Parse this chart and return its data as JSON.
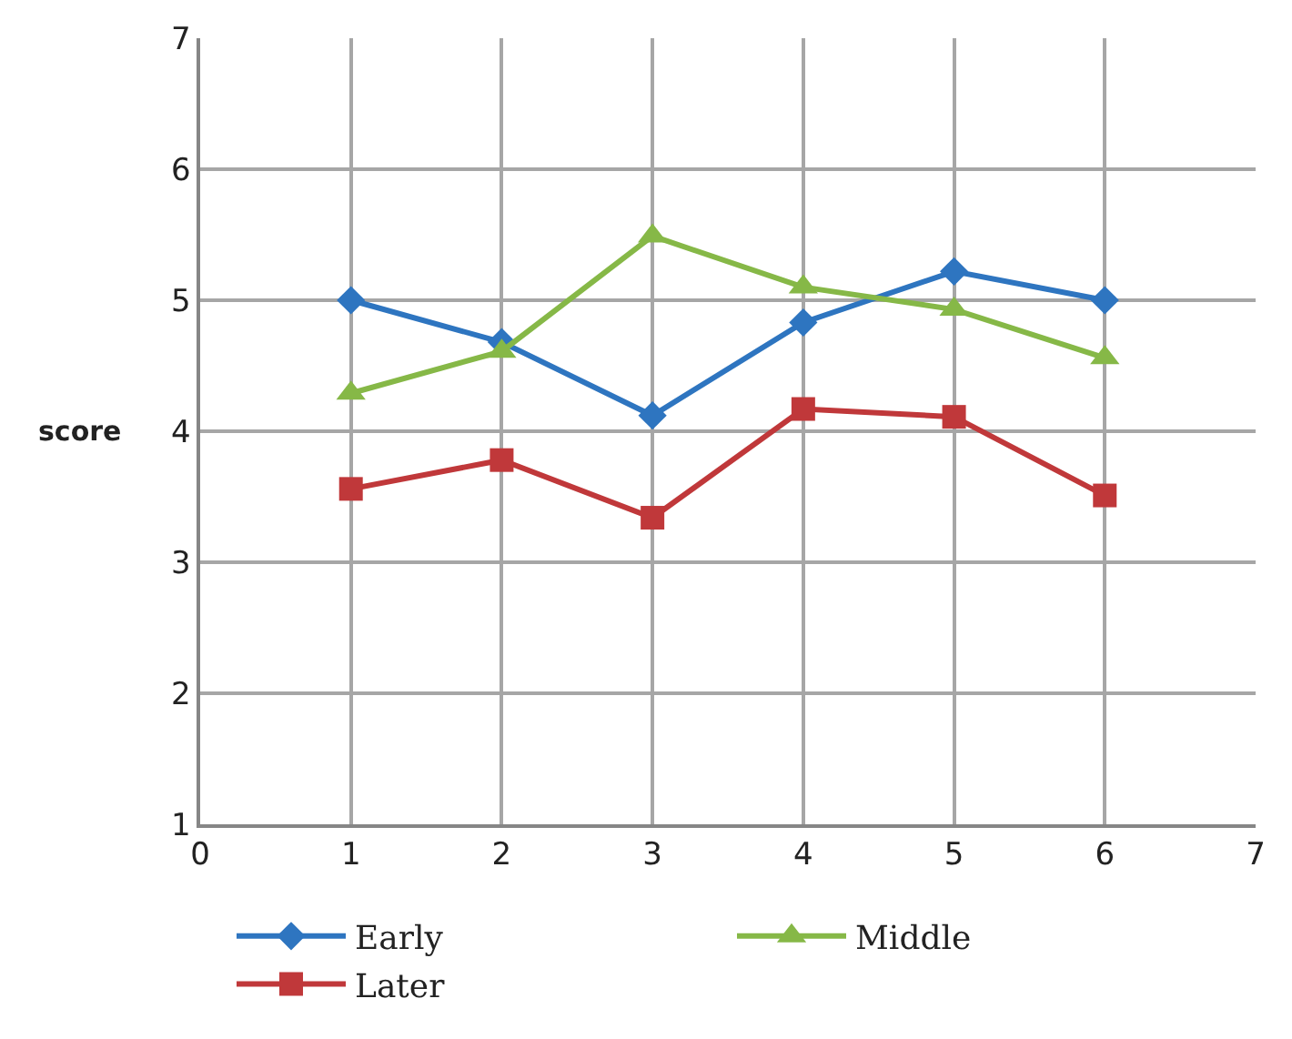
{
  "chart_data": {
    "type": "line",
    "ylabel": "score",
    "x": [
      1,
      2,
      3,
      4,
      5,
      6
    ],
    "series": [
      {
        "name": "Early",
        "color": "#2e75c0",
        "marker": "diamond",
        "values": [
          5.0,
          4.68,
          4.12,
          4.83,
          5.22,
          5.0
        ]
      },
      {
        "name": "Middle",
        "color": "#86b847",
        "marker": "triangle",
        "values": [
          4.29,
          4.61,
          5.49,
          5.1,
          4.93,
          4.56
        ]
      },
      {
        "name": "Later",
        "color": "#c0383a",
        "marker": "square",
        "values": [
          3.56,
          3.78,
          3.34,
          4.17,
          4.11,
          3.51
        ]
      }
    ],
    "xlim": [
      0,
      7
    ],
    "xticks": [
      0,
      1,
      2,
      3,
      4,
      5,
      6,
      7
    ],
    "ylim": [
      1,
      7
    ],
    "yticks": [
      1,
      2,
      3,
      4,
      5,
      6,
      7
    ],
    "grid": true,
    "legend": "bottom",
    "line_style": "solid"
  }
}
